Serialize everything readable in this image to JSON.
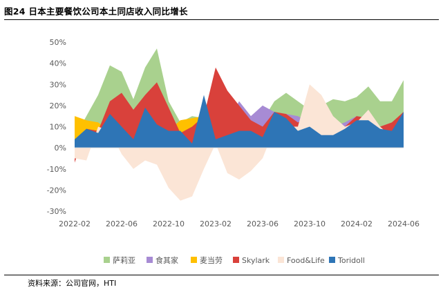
{
  "figure": {
    "title": "图24 日本主要餐饮公司本土同店收入同比增长",
    "source": "资料来源：公司官网，HTI"
  },
  "chart_data": {
    "type": "area",
    "title": "日本主要餐饮公司本土同店收入同比增长",
    "xlabel": "",
    "ylabel": "",
    "ylim": [
      -0.3,
      0.5
    ],
    "y_ticks": [
      0.5,
      0.4,
      0.3,
      0.2,
      0.1,
      0,
      -0.1,
      -0.2,
      -0.3
    ],
    "y_tick_labels": [
      "50%",
      "40%",
      "30%",
      "20%",
      "10%",
      "0%",
      "-10%",
      "-20%",
      "-30%"
    ],
    "x": [
      "2022-02",
      "2022-03",
      "2022-04",
      "2022-05",
      "2022-06",
      "2022-07",
      "2022-08",
      "2022-09",
      "2022-10",
      "2022-11",
      "2022-12",
      "2023-01",
      "2023-02",
      "2023-03",
      "2023-04",
      "2023-05",
      "2023-06",
      "2023-07",
      "2023-08",
      "2023-09",
      "2023-10",
      "2023-11",
      "2023-12",
      "2024-01",
      "2024-02",
      "2024-03",
      "2024-04",
      "2024-05",
      "2024-06"
    ],
    "x_tick_labels": [
      "2022-02",
      "2022-06",
      "2022-10",
      "2023-02",
      "2023-06",
      "2023-10",
      "2024-02",
      "2024-06"
    ],
    "legend_position": "bottom",
    "series": [
      {
        "name": "萨莉亚",
        "color": "#a9d18e",
        "values": [
          0.05,
          0.15,
          0.25,
          0.39,
          0.36,
          0.23,
          0.38,
          0.47,
          0.22,
          0.12,
          0.15,
          0.14,
          0.26,
          0.18,
          0.18,
          0.15,
          0.13,
          0.22,
          0.26,
          0.22,
          0.18,
          0.2,
          0.23,
          0.22,
          0.24,
          0.29,
          0.22,
          0.22,
          0.32
        ]
      },
      {
        "name": "食其家",
        "color": "#a78bd4",
        "values": [
          0.04,
          0.07,
          0.08,
          0.1,
          0.08,
          0.04,
          0.09,
          0.06,
          0.07,
          0.05,
          0.07,
          0.09,
          0.11,
          0.12,
          0.22,
          0.15,
          0.2,
          0.17,
          0.16,
          0.15,
          0.12,
          0.17,
          0.1,
          0.12,
          0.15,
          0.14,
          0.1,
          0.08,
          0.13
        ]
      },
      {
        "name": "麦当劳",
        "color": "#ffc000",
        "values": [
          0.15,
          0.13,
          0.12,
          0.08,
          0.07,
          0.09,
          0.12,
          0.11,
          0.08,
          0.13,
          0.14,
          0.15,
          0.13,
          0.1,
          0.08,
          0.07,
          0.08,
          0.1,
          0.09,
          0.1,
          0.09,
          0.08,
          0.08,
          0.08,
          0.08,
          0.08,
          0.07,
          0.06,
          0.07
        ]
      },
      {
        "name": "Skylark",
        "color": "#d9413b",
        "values": [
          -0.07,
          0.09,
          0.08,
          0.22,
          0.26,
          0.18,
          0.25,
          0.31,
          0.19,
          0.07,
          0.1,
          0.15,
          0.38,
          0.27,
          0.2,
          0.13,
          0.1,
          0.17,
          0.16,
          0.12,
          0.14,
          0.13,
          0.12,
          0.1,
          0.15,
          0.14,
          0.1,
          0.12,
          0.17
        ]
      },
      {
        "name": "Food&Life",
        "color": "#fbe5d6",
        "values": [
          -0.05,
          -0.06,
          0.1,
          0.08,
          -0.03,
          -0.1,
          -0.06,
          -0.08,
          -0.19,
          -0.25,
          -0.23,
          -0.1,
          0.02,
          -0.12,
          -0.15,
          -0.11,
          -0.05,
          0.09,
          0.1,
          0.1,
          0.3,
          0.25,
          0.15,
          0.1,
          0.12,
          0.18,
          0.1,
          0.05,
          0.13
        ]
      },
      {
        "name": "Toridoll",
        "color": "#2e75b6",
        "values": [
          0.04,
          0.09,
          0.07,
          0.16,
          0.1,
          0.04,
          0.19,
          0.11,
          0.08,
          0.08,
          0.02,
          0.25,
          0.04,
          0.06,
          0.08,
          0.08,
          0.05,
          0.17,
          0.14,
          0.08,
          0.1,
          0.06,
          0.06,
          0.09,
          0.13,
          0.13,
          0.09,
          0.08,
          0.17
        ]
      }
    ]
  }
}
